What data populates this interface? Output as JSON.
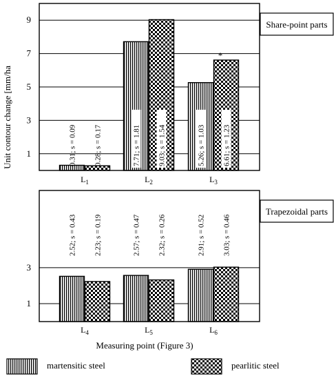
{
  "chart_data": {
    "type": "bar",
    "ylabel": "Unit contour change [mm/ha",
    "xlabel": "Measuring point (Figure 3)",
    "series_names": [
      "martensitic steel",
      "pearlitic steel"
    ],
    "legend": "bottom",
    "panels": [
      {
        "title": "Share-point parts",
        "ylim": [
          0,
          10
        ],
        "yticks": [
          1,
          3,
          5,
          7,
          9
        ],
        "categories": [
          {
            "label": "L",
            "sub": "1"
          },
          {
            "label": "L",
            "sub": "2"
          },
          {
            "label": "L",
            "sub": "3"
          }
        ],
        "series": [
          {
            "values": [
              0.31,
              7.71,
              5.26
            ],
            "labels": [
              "0.31; s = 0.09",
              "7.71; s = 1.81",
              "5.26; s = 1.03"
            ]
          },
          {
            "values": [
              0.28,
              9.03,
              6.61
            ],
            "labels": [
              "0.28; s = 0.17",
              "9.03; s = 1.54",
              "6.61; s = 1.23"
            ]
          }
        ],
        "annotations": [
          {
            "text": "*",
            "category": 2,
            "series": 1
          }
        ]
      },
      {
        "title": "Trapezoidal parts",
        "ylim": [
          0,
          7.3
        ],
        "yticks": [
          1,
          3
        ],
        "categories": [
          {
            "label": "L",
            "sub": "4"
          },
          {
            "label": "L",
            "sub": "5"
          },
          {
            "label": "L",
            "sub": "6"
          }
        ],
        "series": [
          {
            "values": [
              2.52,
              2.57,
              2.91
            ],
            "labels": [
              "2.52; s = 0.43",
              "2.57; s = 0.47",
              "2.91; s = 0.52"
            ]
          },
          {
            "values": [
              2.23,
              2.32,
              3.03
            ],
            "labels": [
              "2.23; s = 0.19",
              "2.32; s = 0.26",
              "3.03; s = 0.46"
            ]
          }
        ],
        "annotations": []
      }
    ]
  }
}
